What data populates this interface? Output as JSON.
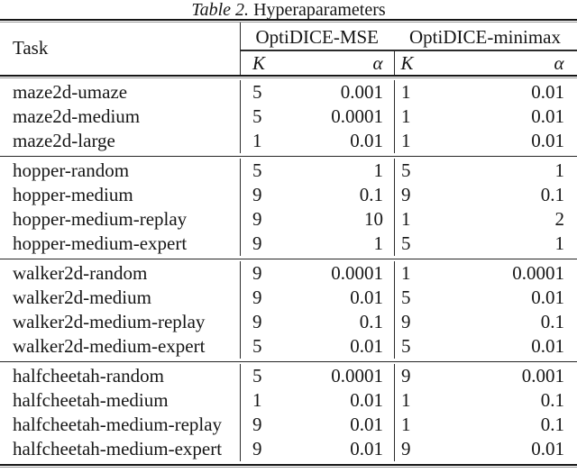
{
  "title": {
    "prefix": "Table 2.",
    "text": "Hyperaparameters"
  },
  "header": {
    "task": "Task",
    "groups": [
      {
        "name": "OptiDICE-MSE",
        "k": "K",
        "alpha": "α"
      },
      {
        "name": "OptiDICE-minimax",
        "k": "K",
        "alpha": "α"
      }
    ]
  },
  "body": {
    "groups": [
      {
        "rows": [
          {
            "task": "maze2d-umaze",
            "mse_k": "5",
            "mse_alpha": "0.001",
            "minimax_k": "1",
            "minimax_alpha": "0.01"
          },
          {
            "task": "maze2d-medium",
            "mse_k": "5",
            "mse_alpha": "0.0001",
            "minimax_k": "1",
            "minimax_alpha": "0.01"
          },
          {
            "task": "maze2d-large",
            "mse_k": "1",
            "mse_alpha": "0.01",
            "minimax_k": "1",
            "minimax_alpha": "0.01"
          }
        ]
      },
      {
        "rows": [
          {
            "task": "hopper-random",
            "mse_k": "5",
            "mse_alpha": "1",
            "minimax_k": "5",
            "minimax_alpha": "1"
          },
          {
            "task": "hopper-medium",
            "mse_k": "9",
            "mse_alpha": "0.1",
            "minimax_k": "9",
            "minimax_alpha": "0.1"
          },
          {
            "task": "hopper-medium-replay",
            "mse_k": "9",
            "mse_alpha": "10",
            "minimax_k": "1",
            "minimax_alpha": "2"
          },
          {
            "task": "hopper-medium-expert",
            "mse_k": "9",
            "mse_alpha": "1",
            "minimax_k": "5",
            "minimax_alpha": "1"
          }
        ]
      },
      {
        "rows": [
          {
            "task": "walker2d-random",
            "mse_k": "9",
            "mse_alpha": "0.0001",
            "minimax_k": "1",
            "minimax_alpha": "0.0001"
          },
          {
            "task": "walker2d-medium",
            "mse_k": "9",
            "mse_alpha": "0.01",
            "minimax_k": "5",
            "minimax_alpha": "0.01"
          },
          {
            "task": "walker2d-medium-replay",
            "mse_k": "9",
            "mse_alpha": "0.1",
            "minimax_k": "9",
            "minimax_alpha": "0.1"
          },
          {
            "task": "walker2d-medium-expert",
            "mse_k": "5",
            "mse_alpha": "0.01",
            "minimax_k": "5",
            "minimax_alpha": "0.01"
          }
        ]
      },
      {
        "rows": [
          {
            "task": "halfcheetah-random",
            "mse_k": "5",
            "mse_alpha": "0.0001",
            "minimax_k": "9",
            "minimax_alpha": "0.001"
          },
          {
            "task": "halfcheetah-medium",
            "mse_k": "1",
            "mse_alpha": "0.01",
            "minimax_k": "1",
            "minimax_alpha": "0.1"
          },
          {
            "task": "halfcheetah-medium-replay",
            "mse_k": "9",
            "mse_alpha": "0.01",
            "minimax_k": "1",
            "minimax_alpha": "0.1"
          },
          {
            "task": "halfcheetah-medium-expert",
            "mse_k": "9",
            "mse_alpha": "0.01",
            "minimax_k": "9",
            "minimax_alpha": "0.01"
          }
        ]
      }
    ]
  },
  "colors": {
    "text": "#161616",
    "rule_dark": "#161616",
    "rule_gray": "#979797",
    "divider": "#2b2b2b",
    "background": "#ffffff"
  }
}
